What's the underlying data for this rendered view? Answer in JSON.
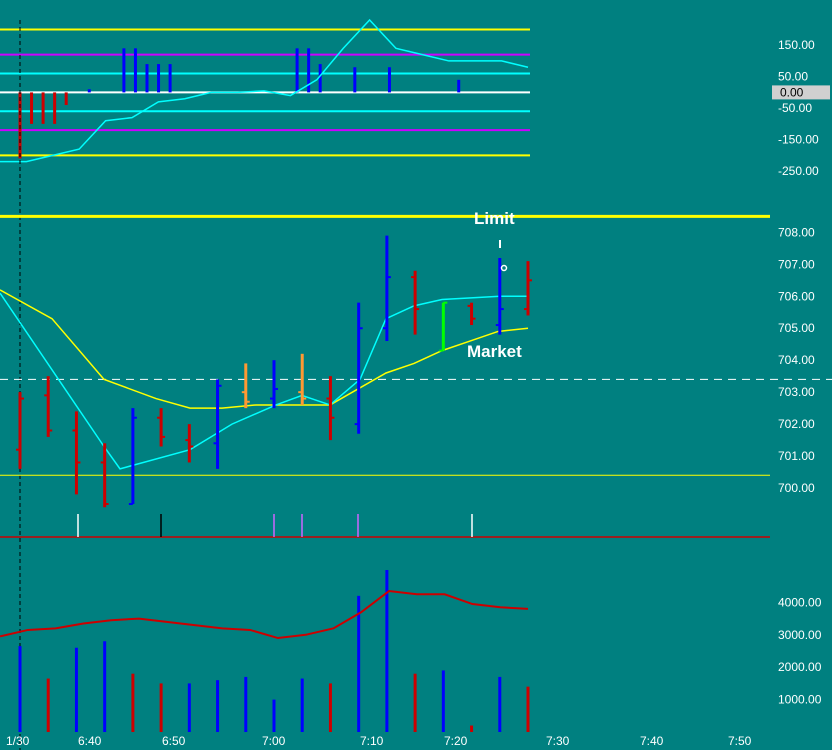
{
  "chart_data": [
    {
      "type": "line",
      "name": "oscillator",
      "ylim": [
        -310,
        230
      ],
      "axis_labels": [
        "150.00",
        "50.00",
        "-50.00",
        "-150.00",
        "-250.00"
      ],
      "axis_values": [
        150,
        50,
        -50,
        -150,
        -250
      ],
      "current_value_label": "0.00",
      "levels": [
        {
          "value": 200,
          "color": "#ffff00"
        },
        {
          "value": 120,
          "color": "#cc00ff"
        },
        {
          "value": 60,
          "color": "#00ffff"
        },
        {
          "value": 0,
          "color": "#ffffff"
        },
        {
          "value": -60,
          "color": "#00ffff"
        },
        {
          "value": -120,
          "color": "#cc00ff"
        },
        {
          "value": -200,
          "color": "#ffff00"
        }
      ],
      "histogram": [
        -210,
        -100,
        -100,
        -100,
        -40,
        0,
        10,
        0,
        0,
        140,
        140,
        90,
        90,
        90,
        0,
        0,
        0,
        0,
        0,
        0,
        0,
        0,
        0,
        0,
        140,
        140,
        90,
        0,
        0,
        80,
        0,
        0,
        80,
        0,
        0,
        0,
        0,
        0,
        40,
        0,
        0,
        0,
        0,
        0,
        0
      ],
      "line": [
        -220,
        -220,
        -200,
        -180,
        -90,
        -80,
        -30,
        -20,
        0,
        0,
        5,
        -10,
        40,
        140,
        230,
        140,
        120,
        100,
        100,
        100,
        80
      ],
      "colors": {
        "hist_up": "#0000ff",
        "hist_down": "#cc0000",
        "line": "#00ffff"
      }
    },
    {
      "type": "candlestick",
      "name": "price",
      "ylim": [
        699.0,
        708.7
      ],
      "axis_labels": [
        "708.00",
        "707.00",
        "706.00",
        "705.00",
        "704.00",
        "703.00",
        "702.00",
        "701.00",
        "700.00"
      ],
      "axis_values": [
        708,
        707,
        706,
        705,
        704,
        703,
        702,
        701,
        700
      ],
      "bars": [
        {
          "x": "6:34",
          "open": 701.2,
          "high": 703.0,
          "low": 700.6,
          "close": 702.8,
          "color": "#cc0000"
        },
        {
          "x": "6:36",
          "open": 702.9,
          "high": 703.5,
          "low": 701.6,
          "close": 701.8,
          "color": "#cc0000"
        },
        {
          "x": "6:39",
          "open": 701.8,
          "high": 702.4,
          "low": 699.8,
          "close": 700.8,
          "color": "#cc0000"
        },
        {
          "x": "6:42",
          "open": 700.8,
          "high": 701.4,
          "low": 699.4,
          "close": 699.5,
          "color": "#cc0000"
        },
        {
          "x": "6:45",
          "open": 699.5,
          "high": 702.5,
          "low": 699.5,
          "close": 702.2,
          "color": "#0000ff"
        },
        {
          "x": "6:48",
          "open": 702.2,
          "high": 702.5,
          "low": 701.3,
          "close": 701.6,
          "color": "#cc0000"
        },
        {
          "x": "6:51",
          "open": 701.5,
          "high": 702.0,
          "low": 700.8,
          "close": 701.3,
          "color": "#cc0000"
        },
        {
          "x": "6:54",
          "open": 701.4,
          "high": 703.4,
          "low": 700.6,
          "close": 703.2,
          "color": "#0000ff"
        },
        {
          "x": "6:57",
          "open": 703.0,
          "high": 703.9,
          "low": 702.5,
          "close": 702.7,
          "color": "#ff9933"
        },
        {
          "x": "7:00",
          "open": 702.8,
          "high": 704.0,
          "low": 702.5,
          "close": 703.1,
          "color": "#0000ff"
        },
        {
          "x": "7:03",
          "open": 703.0,
          "high": 704.2,
          "low": 702.6,
          "close": 702.8,
          "color": "#ff9933"
        },
        {
          "x": "7:06",
          "open": 702.8,
          "high": 703.5,
          "low": 701.5,
          "close": 702.2,
          "color": "#cc0000"
        },
        {
          "x": "7:09",
          "open": 702.0,
          "high": 705.8,
          "low": 701.7,
          "close": 705.0,
          "color": "#0000ff"
        },
        {
          "x": "7:12",
          "open": 705.0,
          "high": 707.9,
          "low": 704.6,
          "close": 706.6,
          "color": "#0000ff"
        },
        {
          "x": "7:15",
          "open": 706.6,
          "high": 706.8,
          "low": 704.8,
          "close": 705.6,
          "color": "#cc0000"
        },
        {
          "x": "7:18",
          "open": 704.3,
          "high": 705.8,
          "low": 704.3,
          "close": 705.8,
          "color": "#00ff00"
        },
        {
          "x": "7:21",
          "open": 705.7,
          "high": 705.8,
          "low": 705.1,
          "close": 705.3,
          "color": "#cc0000"
        },
        {
          "x": "7:24",
          "open": 705.1,
          "high": 707.2,
          "low": 704.8,
          "close": 705.6,
          "color": "#0000ff"
        },
        {
          "x": "7:27",
          "open": 705.6,
          "high": 707.1,
          "low": 705.4,
          "close": 706.5,
          "color": "#cc0000"
        }
      ],
      "cyan_line": [
        706.1,
        701.3,
        700.6,
        701.2,
        702.0,
        702.6,
        702.9,
        702.6,
        703.4,
        705.3,
        705.7,
        705.9,
        706.0,
        706.0
      ],
      "yellow_line": [
        706.2,
        705.3,
        703.4,
        702.8,
        702.5,
        702.5,
        702.6,
        702.6,
        702.6,
        703.6,
        703.9,
        704.3,
        704.6,
        704.9,
        705.0
      ],
      "yellow_top_level": 708.5,
      "dashed_level": 703.4,
      "support_level": 700.4,
      "annotations": {
        "limit": "Limit",
        "market": "Market"
      }
    },
    {
      "type": "bar",
      "name": "volume",
      "ylim": [
        0,
        5000
      ],
      "axis_labels": [
        "4000.00",
        "3000.00",
        "2000.00",
        "1000.00"
      ],
      "axis_values": [
        4000,
        3000,
        2000,
        1000
      ],
      "bars": [
        {
          "value": 2650,
          "color": "#0000ff"
        },
        {
          "value": 1650,
          "color": "#cc0000"
        },
        {
          "value": 2600,
          "color": "#0000ff"
        },
        {
          "value": 2800,
          "color": "#0000ff"
        },
        {
          "value": 1800,
          "color": "#cc0000"
        },
        {
          "value": 1500,
          "color": "#cc0000"
        },
        {
          "value": 1500,
          "color": "#0000ff"
        },
        {
          "value": 1600,
          "color": "#0000ff"
        },
        {
          "value": 1700,
          "color": "#0000ff"
        },
        {
          "value": 1000,
          "color": "#0000ff"
        },
        {
          "value": 1650,
          "color": "#0000ff"
        },
        {
          "value": 1500,
          "color": "#cc0000"
        },
        {
          "value": 4200,
          "color": "#0000ff"
        },
        {
          "value": 5000,
          "color": "#0000ff"
        },
        {
          "value": 1800,
          "color": "#cc0000"
        },
        {
          "value": 1900,
          "color": "#0000ff"
        },
        {
          "value": 200,
          "color": "#cc0000"
        },
        {
          "value": 1700,
          "color": "#0000ff"
        },
        {
          "value": 1400,
          "color": "#cc0000"
        }
      ],
      "avg_line": [
        2950,
        3150,
        3200,
        3350,
        3450,
        3500,
        3400,
        3300,
        3200,
        3150,
        2900,
        3000,
        3200,
        3700,
        4350,
        4250,
        4250,
        3950,
        3850,
        3800
      ]
    }
  ],
  "x_axis": {
    "tick_labels": [
      "1/30",
      "6:40",
      "6:50",
      "7:00",
      "7:10",
      "7:20",
      "7:30",
      "7:40",
      "7:50"
    ]
  },
  "markers": [
    {
      "color": "#ffffff"
    },
    {
      "color": "#000000"
    },
    {
      "color": "#cc66ff"
    },
    {
      "color": "#cc66ff"
    },
    {
      "color": "#cc66ff"
    },
    {
      "color": "#ffffff"
    }
  ]
}
